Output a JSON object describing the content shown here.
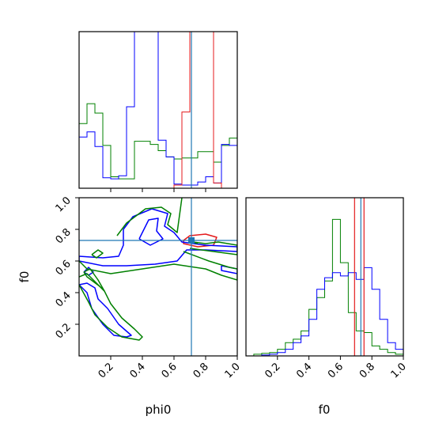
{
  "chart_data": {
    "type": "corner",
    "parameters": [
      "phi0",
      "f0"
    ],
    "colors": {
      "red": "#e41a1c",
      "blue": "#0000ff",
      "green": "#008000",
      "truth": "#1f77b4"
    },
    "truth": {
      "phi0": 0.71,
      "f0": 0.73
    },
    "panels": [
      {
        "id": "phi0-hist",
        "type": "histogram",
        "parameter": "phi0",
        "xlim": [
          0,
          1
        ],
        "bins": 20,
        "series": [
          {
            "color": "red",
            "values": [
              0,
              0,
              0,
              0,
              0,
              0,
              0,
              0,
              0,
              0,
              0,
              0,
              0.03,
              0.73,
              1.5,
              1.5,
              1.5,
              0.05,
              0,
              0
            ]
          },
          {
            "color": "blue",
            "values": [
              0.49,
              0.54,
              0.4,
              0.1,
              0.09,
              0.12,
              0.78,
              1.5,
              1.5,
              1.5,
              0.46,
              0.3,
              0.04,
              0.03,
              0.03,
              0.06,
              0.11,
              0.05,
              0.42,
              0.41
            ]
          },
          {
            "color": "green",
            "values": [
              0.62,
              0.81,
              0.72,
              0.41,
              0.11,
              0.09,
              0.09,
              0.45,
              0.45,
              0.42,
              0.36,
              0.3,
              0.28,
              0.29,
              0.29,
              0.35,
              0.35,
              0.25,
              0.41,
              0.48
            ]
          }
        ]
      },
      {
        "id": "phi0-f0-contour",
        "type": "contour",
        "x": "phi0",
        "y": "f0",
        "xlim": [
          0,
          1
        ],
        "ylim": [
          0,
          1
        ],
        "contours": [
          {
            "color": "red",
            "points": [
              [
                0.66,
                0.73
              ],
              [
                0.7,
                0.76
              ],
              [
                0.8,
                0.77
              ],
              [
                0.87,
                0.75
              ],
              [
                0.85,
                0.7
              ],
              [
                0.75,
                0.69
              ],
              [
                0.66,
                0.71
              ],
              [
                0.66,
                0.73
              ]
            ]
          },
          {
            "color": "blue",
            "points": [
              [
                0.28,
                0.8
              ],
              [
                0.34,
                0.88
              ],
              [
                0.46,
                0.93
              ],
              [
                0.56,
                0.9
              ],
              [
                0.54,
                0.82
              ],
              [
                0.6,
                0.78
              ],
              [
                0.65,
                0.72
              ],
              [
                0.8,
                0.7
              ],
              [
                1.0,
                0.69
              ],
              [
                1.0,
                0.66
              ],
              [
                0.8,
                0.67
              ],
              [
                0.68,
                0.67
              ],
              [
                0.62,
                0.6
              ],
              [
                0.48,
                0.58
              ],
              [
                0.3,
                0.57
              ],
              [
                0.15,
                0.57
              ],
              [
                0.0,
                0.6
              ],
              [
                0.0,
                0.63
              ],
              [
                0.15,
                0.62
              ],
              [
                0.25,
                0.63
              ],
              [
                0.28,
                0.7
              ],
              [
                0.28,
                0.8
              ]
            ]
          },
          {
            "color": "blue",
            "points": [
              [
                0.38,
                0.74
              ],
              [
                0.44,
                0.86
              ],
              [
                0.5,
                0.87
              ],
              [
                0.49,
                0.79
              ],
              [
                0.53,
                0.74
              ],
              [
                0.45,
                0.7
              ],
              [
                0.38,
                0.74
              ]
            ]
          },
          {
            "color": "blue",
            "points": [
              [
                0.0,
                0.45
              ],
              [
                0.05,
                0.4
              ],
              [
                0.08,
                0.3
              ],
              [
                0.15,
                0.2
              ],
              [
                0.22,
                0.13
              ],
              [
                0.3,
                0.12
              ],
              [
                0.33,
                0.13
              ],
              [
                0.25,
                0.2
              ],
              [
                0.18,
                0.3
              ],
              [
                0.12,
                0.36
              ],
              [
                0.1,
                0.43
              ],
              [
                0.05,
                0.46
              ],
              [
                0.0,
                0.45
              ]
            ]
          },
          {
            "color": "blue",
            "points": [
              [
                0.03,
                0.53
              ],
              [
                0.06,
                0.56
              ],
              [
                0.09,
                0.53
              ],
              [
                0.06,
                0.51
              ],
              [
                0.03,
                0.53
              ]
            ]
          },
          {
            "color": "blue",
            "points": [
              [
                0.9,
                0.57
              ],
              [
                1.0,
                0.55
              ],
              [
                1.0,
                0.52
              ],
              [
                0.9,
                0.54
              ],
              [
                0.9,
                0.57
              ]
            ]
          },
          {
            "color": "green",
            "points": [
              [
                0.24,
                0.76
              ],
              [
                0.3,
                0.84
              ],
              [
                0.42,
                0.93
              ],
              [
                0.52,
                0.94
              ],
              [
                0.58,
                0.9
              ],
              [
                0.56,
                0.83
              ],
              [
                0.62,
                0.78
              ],
              [
                0.65,
                1.0
              ]
            ]
          },
          {
            "color": "green",
            "points": [
              [
                0.7,
                0.68
              ],
              [
                0.85,
                0.66
              ],
              [
                1.0,
                0.64
              ],
              [
                1.0,
                0.7
              ],
              [
                0.88,
                0.72
              ],
              [
                0.8,
                0.71
              ],
              [
                0.72,
                0.72
              ],
              [
                0.75,
                0.71
              ]
            ]
          },
          {
            "color": "green",
            "points": [
              [
                0.66,
                0.66
              ],
              [
                0.82,
                0.6
              ],
              [
                0.95,
                0.56
              ],
              [
                1.0,
                0.55
              ],
              [
                1.0,
                0.48
              ],
              [
                0.9,
                0.51
              ],
              [
                0.8,
                0.55
              ],
              [
                0.6,
                0.58
              ],
              [
                0.4,
                0.55
              ],
              [
                0.2,
                0.52
              ],
              [
                0.05,
                0.55
              ],
              [
                0.0,
                0.6
              ]
            ]
          },
          {
            "color": "green",
            "points": [
              [
                0.0,
                0.45
              ],
              [
                0.06,
                0.34
              ],
              [
                0.1,
                0.26
              ],
              [
                0.18,
                0.18
              ],
              [
                0.27,
                0.12
              ],
              [
                0.38,
                0.1
              ],
              [
                0.4,
                0.12
              ],
              [
                0.35,
                0.17
              ],
              [
                0.27,
                0.24
              ],
              [
                0.2,
                0.33
              ],
              [
                0.16,
                0.41
              ],
              [
                0.1,
                0.47
              ],
              [
                0.05,
                0.52
              ],
              [
                0.0,
                0.5
              ]
            ]
          },
          {
            "color": "green",
            "points": [
              [
                0.08,
                0.64
              ],
              [
                0.12,
                0.67
              ],
              [
                0.15,
                0.65
              ],
              [
                0.11,
                0.62
              ],
              [
                0.08,
                0.64
              ]
            ]
          },
          {
            "color": "green",
            "points": [
              [
                0.03,
                0.53
              ],
              [
                0.05,
                0.5
              ],
              [
                0.13,
                0.44
              ],
              [
                0.16,
                0.41
              ],
              [
                0.12,
                0.48
              ],
              [
                0.07,
                0.55
              ],
              [
                0.03,
                0.53
              ]
            ]
          }
        ],
        "marker": {
          "phi0": 0.71,
          "f0": 0.73
        }
      },
      {
        "id": "f0-hist",
        "type": "histogram",
        "parameter": "f0",
        "xlim": [
          0,
          1
        ],
        "bins": 20,
        "series": [
          {
            "color": "red",
            "vlines": [
              0.69,
              0.75
            ]
          },
          {
            "color": "blue",
            "values": [
              0,
              0,
              0.005,
              0.01,
              0.02,
              0.04,
              0.08,
              0.12,
              0.22,
              0.4,
              0.47,
              0.5,
              0.48,
              0.5,
              0.46,
              0.53,
              0.4,
              0.22,
              0.08,
              0.04
            ]
          },
          {
            "color": "green",
            "values": [
              0,
              0.01,
              0.015,
              0.02,
              0.04,
              0.08,
              0.1,
              0.15,
              0.28,
              0.35,
              0.45,
              0.82,
              0.56,
              0.26,
              0.15,
              0.14,
              0.06,
              0.04,
              0.02,
              0.01
            ]
          }
        ]
      }
    ],
    "xlabels": {
      "phi0": "phi0",
      "f0": "f0"
    },
    "ylabels": {
      "f0": "f0"
    },
    "ticks": {
      "bottom_left_x": [
        "0.2",
        "0.4",
        "0.6",
        "0.8",
        "1.0"
      ],
      "bottom_left_y": [
        "0.2",
        "0.4",
        "0.6",
        "0.8",
        "1.0"
      ],
      "bottom_right_x": [
        "0.2",
        "0.4",
        "0.6",
        "0.8",
        "1.0"
      ]
    }
  }
}
